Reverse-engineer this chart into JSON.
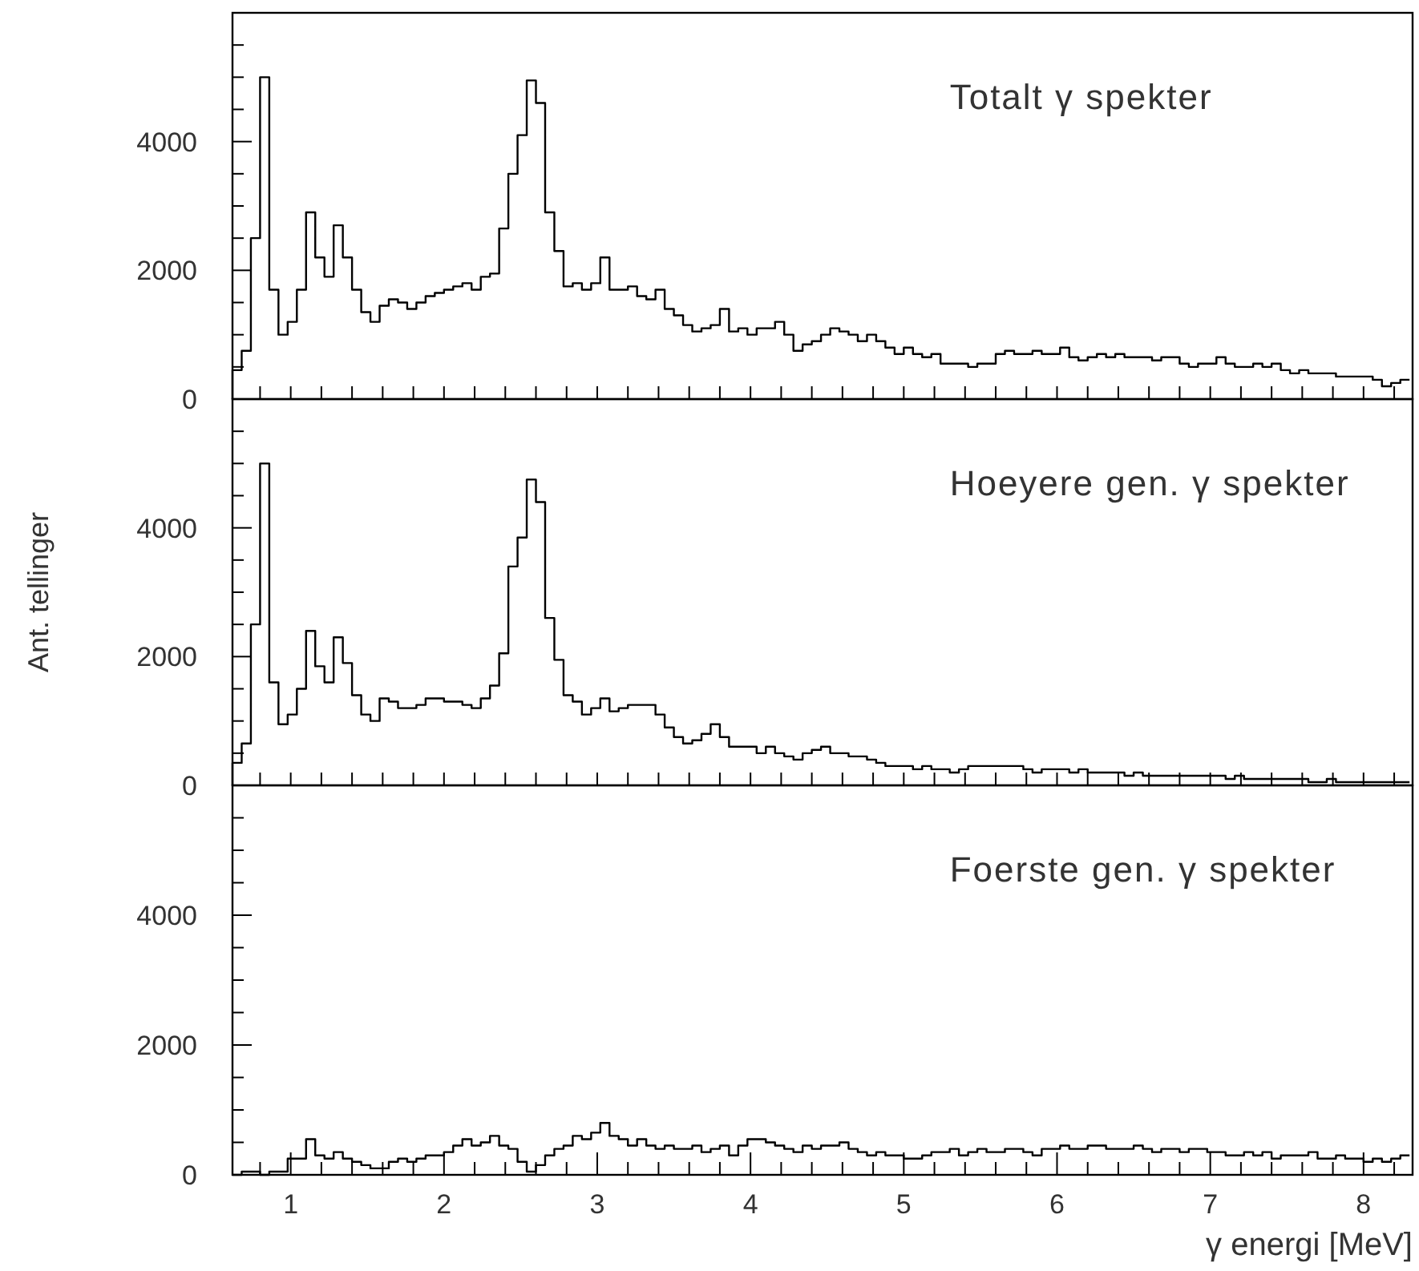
{
  "chart_data": [
    {
      "type": "histogram",
      "title": "Totalt γ spekter",
      "color": "#000000",
      "tick_labels": "y",
      "xlim": [
        0.62,
        8.32
      ],
      "ylim": [
        0,
        6000
      ],
      "xticks": [
        {
          "value": 0.8,
          "label": null
        },
        {
          "value": 1,
          "label": null
        },
        {
          "value": 1.2,
          "label": null
        },
        {
          "value": 1.4,
          "label": null
        },
        {
          "value": 1.6,
          "label": null
        },
        {
          "value": 1.8,
          "label": null
        },
        {
          "value": 2,
          "label": null
        },
        {
          "value": 2.2,
          "label": null
        },
        {
          "value": 2.4,
          "label": null
        },
        {
          "value": 2.6,
          "label": null
        },
        {
          "value": 2.8,
          "label": null
        },
        {
          "value": 3,
          "label": null
        },
        {
          "value": 3.2,
          "label": null
        },
        {
          "value": 3.4,
          "label": null
        },
        {
          "value": 3.6,
          "label": null
        },
        {
          "value": 3.8,
          "label": null
        },
        {
          "value": 4,
          "label": null
        },
        {
          "value": 4.2,
          "label": null
        },
        {
          "value": 4.4,
          "label": null
        },
        {
          "value": 4.6,
          "label": null
        },
        {
          "value": 4.8,
          "label": null
        },
        {
          "value": 5,
          "label": null
        },
        {
          "value": 5.2,
          "label": null
        },
        {
          "value": 5.4,
          "label": null
        },
        {
          "value": 5.6,
          "label": null
        },
        {
          "value": 5.8,
          "label": null
        },
        {
          "value": 6,
          "label": null
        },
        {
          "value": 6.2,
          "label": null
        },
        {
          "value": 6.4,
          "label": null
        },
        {
          "value": 6.6,
          "label": null
        },
        {
          "value": 6.8,
          "label": null
        },
        {
          "value": 7,
          "label": null
        },
        {
          "value": 7.2,
          "label": null
        },
        {
          "value": 7.4,
          "label": null
        },
        {
          "value": 7.6,
          "label": null
        },
        {
          "value": 7.8,
          "label": null
        },
        {
          "value": 8,
          "label": null
        },
        {
          "value": 8.2,
          "label": null
        }
      ],
      "yticks": [
        0,
        {
          "value": 500,
          "label": null
        },
        {
          "value": 1000,
          "label": null
        },
        {
          "value": 1500,
          "label": null
        },
        2000,
        {
          "value": 2500,
          "label": null
        },
        {
          "value": 3000,
          "label": null
        },
        {
          "value": 3500,
          "label": null
        },
        4000,
        {
          "value": 4500,
          "label": null
        },
        {
          "value": 5000,
          "label": null
        },
        {
          "value": 5500,
          "label": null
        }
      ],
      "bins": [
        0.62,
        0.68,
        0.74,
        0.8,
        0.86,
        0.92,
        0.98,
        1.04,
        1.1,
        1.16,
        1.22,
        1.28,
        1.34,
        1.4,
        1.46,
        1.52,
        1.58,
        1.64,
        1.7,
        1.76,
        1.82,
        1.88,
        1.94,
        2,
        2.06,
        2.12,
        2.18,
        2.24,
        2.3,
        2.36,
        2.42,
        2.48,
        2.54,
        2.6,
        2.66,
        2.72,
        2.78,
        2.84,
        2.9,
        2.96,
        3.02,
        3.08,
        3.14,
        3.2,
        3.26,
        3.32,
        3.38,
        3.44,
        3.5,
        3.56,
        3.62,
        3.68,
        3.74,
        3.8,
        3.86,
        3.92,
        3.98,
        4.04,
        4.1,
        4.16,
        4.22,
        4.28,
        4.34,
        4.4,
        4.46,
        4.52,
        4.58,
        4.64,
        4.7,
        4.76,
        4.82,
        4.88,
        4.94,
        5,
        5.06,
        5.12,
        5.18,
        5.24,
        5.3,
        5.36,
        5.42,
        5.48,
        5.54,
        5.6,
        5.66,
        5.72,
        5.78,
        5.84,
        5.9,
        5.96,
        6.02,
        6.08,
        6.14,
        6.2,
        6.26,
        6.32,
        6.38,
        6.44,
        6.5,
        6.56,
        6.62,
        6.68,
        6.74,
        6.8,
        6.86,
        6.92,
        6.98,
        7.04,
        7.1,
        7.16,
        7.22,
        7.28,
        7.34,
        7.4,
        7.46,
        7.52,
        7.58,
        7.64,
        7.7,
        7.76,
        7.82,
        7.88,
        7.94,
        8,
        8.06,
        8.12,
        8.18,
        8.24,
        8.3
      ],
      "values": [
        450,
        750,
        2500,
        5000,
        1700,
        1000,
        1200,
        1700,
        2900,
        2200,
        1900,
        2700,
        2200,
        1700,
        1350,
        1200,
        1450,
        1550,
        1500,
        1400,
        1500,
        1600,
        1650,
        1700,
        1750,
        1800,
        1700,
        1900,
        1950,
        2650,
        3500,
        4100,
        4950,
        4600,
        2900,
        2300,
        1750,
        1800,
        1700,
        1800,
        2200,
        1700,
        1700,
        1750,
        1600,
        1550,
        1700,
        1400,
        1300,
        1150,
        1050,
        1100,
        1150,
        1400,
        1050,
        1100,
        1000,
        1100,
        1100,
        1200,
        1000,
        750,
        850,
        900,
        1000,
        1100,
        1050,
        1000,
        900,
        1000,
        900,
        800,
        700,
        800,
        700,
        650,
        700,
        550,
        550,
        550,
        500,
        550,
        550,
        700,
        750,
        700,
        700,
        750,
        700,
        700,
        800,
        650,
        600,
        650,
        700,
        650,
        700,
        650,
        650,
        650,
        600,
        650,
        650,
        550,
        500,
        550,
        550,
        650,
        550,
        500,
        500,
        550,
        500,
        550,
        450,
        400,
        450,
        400,
        400,
        400,
        350,
        350,
        350,
        350,
        300,
        200,
        250,
        300
      ]
    },
    {
      "type": "histogram",
      "title": "Hoeyere gen. γ spekter",
      "ylabel": "Ant. tellinger",
      "color": "#000000",
      "tick_labels": "y",
      "xlim": [
        0.62,
        8.32
      ],
      "ylim": [
        0,
        6000
      ],
      "xticks": [
        {
          "value": 0.8,
          "label": null
        },
        {
          "value": 1,
          "label": null
        },
        {
          "value": 1.2,
          "label": null
        },
        {
          "value": 1.4,
          "label": null
        },
        {
          "value": 1.6,
          "label": null
        },
        {
          "value": 1.8,
          "label": null
        },
        {
          "value": 2,
          "label": null
        },
        {
          "value": 2.2,
          "label": null
        },
        {
          "value": 2.4,
          "label": null
        },
        {
          "value": 2.6,
          "label": null
        },
        {
          "value": 2.8,
          "label": null
        },
        {
          "value": 3,
          "label": null
        },
        {
          "value": 3.2,
          "label": null
        },
        {
          "value": 3.4,
          "label": null
        },
        {
          "value": 3.6,
          "label": null
        },
        {
          "value": 3.8,
          "label": null
        },
        {
          "value": 4,
          "label": null
        },
        {
          "value": 4.2,
          "label": null
        },
        {
          "value": 4.4,
          "label": null
        },
        {
          "value": 4.6,
          "label": null
        },
        {
          "value": 4.8,
          "label": null
        },
        {
          "value": 5,
          "label": null
        },
        {
          "value": 5.2,
          "label": null
        },
        {
          "value": 5.4,
          "label": null
        },
        {
          "value": 5.6,
          "label": null
        },
        {
          "value": 5.8,
          "label": null
        },
        {
          "value": 6,
          "label": null
        },
        {
          "value": 6.2,
          "label": null
        },
        {
          "value": 6.4,
          "label": null
        },
        {
          "value": 6.6,
          "label": null
        },
        {
          "value": 6.8,
          "label": null
        },
        {
          "value": 7,
          "label": null
        },
        {
          "value": 7.2,
          "label": null
        },
        {
          "value": 7.4,
          "label": null
        },
        {
          "value": 7.6,
          "label": null
        },
        {
          "value": 7.8,
          "label": null
        },
        {
          "value": 8,
          "label": null
        },
        {
          "value": 8.2,
          "label": null
        }
      ],
      "yticks": [
        0,
        {
          "value": 500,
          "label": null
        },
        {
          "value": 1000,
          "label": null
        },
        {
          "value": 1500,
          "label": null
        },
        2000,
        {
          "value": 2500,
          "label": null
        },
        {
          "value": 3000,
          "label": null
        },
        {
          "value": 3500,
          "label": null
        },
        4000,
        {
          "value": 4500,
          "label": null
        },
        {
          "value": 5000,
          "label": null
        },
        {
          "value": 5500,
          "label": null
        }
      ],
      "bins": [
        0.62,
        0.68,
        0.74,
        0.8,
        0.86,
        0.92,
        0.98,
        1.04,
        1.1,
        1.16,
        1.22,
        1.28,
        1.34,
        1.4,
        1.46,
        1.52,
        1.58,
        1.64,
        1.7,
        1.76,
        1.82,
        1.88,
        1.94,
        2,
        2.06,
        2.12,
        2.18,
        2.24,
        2.3,
        2.36,
        2.42,
        2.48,
        2.54,
        2.6,
        2.66,
        2.72,
        2.78,
        2.84,
        2.9,
        2.96,
        3.02,
        3.08,
        3.14,
        3.2,
        3.26,
        3.32,
        3.38,
        3.44,
        3.5,
        3.56,
        3.62,
        3.68,
        3.74,
        3.8,
        3.86,
        3.92,
        3.98,
        4.04,
        4.1,
        4.16,
        4.22,
        4.28,
        4.34,
        4.4,
        4.46,
        4.52,
        4.58,
        4.64,
        4.7,
        4.76,
        4.82,
        4.88,
        4.94,
        5,
        5.06,
        5.12,
        5.18,
        5.24,
        5.3,
        5.36,
        5.42,
        5.48,
        5.54,
        5.6,
        5.66,
        5.72,
        5.78,
        5.84,
        5.9,
        5.96,
        6.02,
        6.08,
        6.14,
        6.2,
        6.26,
        6.32,
        6.38,
        6.44,
        6.5,
        6.56,
        6.62,
        6.68,
        6.74,
        6.8,
        6.86,
        6.92,
        6.98,
        7.04,
        7.1,
        7.16,
        7.22,
        7.28,
        7.34,
        7.4,
        7.46,
        7.52,
        7.58,
        7.64,
        7.7,
        7.76,
        7.82,
        7.88,
        7.94,
        8,
        8.06,
        8.12,
        8.18,
        8.24,
        8.3
      ],
      "values": [
        350,
        650,
        2500,
        5000,
        1600,
        950,
        1100,
        1500,
        2400,
        1850,
        1600,
        2300,
        1900,
        1400,
        1100,
        1000,
        1350,
        1300,
        1200,
        1200,
        1250,
        1350,
        1350,
        1300,
        1300,
        1250,
        1200,
        1350,
        1550,
        2050,
        3400,
        3850,
        4750,
        4400,
        2600,
        1950,
        1400,
        1300,
        1100,
        1200,
        1350,
        1150,
        1200,
        1250,
        1250,
        1250,
        1100,
        900,
        750,
        650,
        700,
        800,
        950,
        750,
        600,
        600,
        600,
        500,
        600,
        500,
        450,
        400,
        500,
        550,
        600,
        500,
        500,
        450,
        450,
        400,
        350,
        300,
        300,
        300,
        250,
        300,
        250,
        250,
        200,
        250,
        300,
        300,
        300,
        300,
        300,
        300,
        250,
        200,
        250,
        250,
        250,
        200,
        250,
        200,
        200,
        200,
        200,
        150,
        200,
        150,
        150,
        150,
        150,
        150,
        150,
        150,
        150,
        150,
        100,
        150,
        100,
        100,
        100,
        100,
        100,
        100,
        100,
        50,
        50,
        100,
        50,
        50,
        50,
        50,
        50,
        50,
        50,
        50
      ]
    },
    {
      "type": "histogram",
      "title": "Foerste gen. γ spekter",
      "xlabel": "γ energi [MeV]",
      "color": "#000000",
      "xlim": [
        0.62,
        8.32
      ],
      "ylim": [
        0,
        6000
      ],
      "xticks": [
        {
          "value": 0.8,
          "label": null
        },
        1,
        {
          "value": 1.2,
          "label": null
        },
        {
          "value": 1.4,
          "label": null
        },
        {
          "value": 1.6,
          "label": null
        },
        {
          "value": 1.8,
          "label": null
        },
        2,
        {
          "value": 2.2,
          "label": null
        },
        {
          "value": 2.4,
          "label": null
        },
        {
          "value": 2.6,
          "label": null
        },
        {
          "value": 2.8,
          "label": null
        },
        3,
        {
          "value": 3.2,
          "label": null
        },
        {
          "value": 3.4,
          "label": null
        },
        {
          "value": 3.6,
          "label": null
        },
        {
          "value": 3.8,
          "label": null
        },
        4,
        {
          "value": 4.2,
          "label": null
        },
        {
          "value": 4.4,
          "label": null
        },
        {
          "value": 4.6,
          "label": null
        },
        {
          "value": 4.8,
          "label": null
        },
        5,
        {
          "value": 5.2,
          "label": null
        },
        {
          "value": 5.4,
          "label": null
        },
        {
          "value": 5.6,
          "label": null
        },
        {
          "value": 5.8,
          "label": null
        },
        6,
        {
          "value": 6.2,
          "label": null
        },
        {
          "value": 6.4,
          "label": null
        },
        {
          "value": 6.6,
          "label": null
        },
        {
          "value": 6.8,
          "label": null
        },
        7,
        {
          "value": 7.2,
          "label": null
        },
        {
          "value": 7.4,
          "label": null
        },
        {
          "value": 7.6,
          "label": null
        },
        {
          "value": 7.8,
          "label": null
        },
        8,
        {
          "value": 8.2,
          "label": null
        }
      ],
      "yticks": [
        0,
        {
          "value": 500,
          "label": null
        },
        {
          "value": 1000,
          "label": null
        },
        {
          "value": 1500,
          "label": null
        },
        2000,
        {
          "value": 2500,
          "label": null
        },
        {
          "value": 3000,
          "label": null
        },
        {
          "value": 3500,
          "label": null
        },
        4000,
        {
          "value": 4500,
          "label": null
        },
        {
          "value": 5000,
          "label": null
        },
        {
          "value": 5500,
          "label": null
        }
      ],
      "bins": [
        0.62,
        0.68,
        0.74,
        0.8,
        0.86,
        0.92,
        0.98,
        1.04,
        1.1,
        1.16,
        1.22,
        1.28,
        1.34,
        1.4,
        1.46,
        1.52,
        1.58,
        1.64,
        1.7,
        1.76,
        1.82,
        1.88,
        1.94,
        2,
        2.06,
        2.12,
        2.18,
        2.24,
        2.3,
        2.36,
        2.42,
        2.48,
        2.54,
        2.6,
        2.66,
        2.72,
        2.78,
        2.84,
        2.9,
        2.96,
        3.02,
        3.08,
        3.14,
        3.2,
        3.26,
        3.32,
        3.38,
        3.44,
        3.5,
        3.56,
        3.62,
        3.68,
        3.74,
        3.8,
        3.86,
        3.92,
        3.98,
        4.04,
        4.1,
        4.16,
        4.22,
        4.28,
        4.34,
        4.4,
        4.46,
        4.52,
        4.58,
        4.64,
        4.7,
        4.76,
        4.82,
        4.88,
        4.94,
        5,
        5.06,
        5.12,
        5.18,
        5.24,
        5.3,
        5.36,
        5.42,
        5.48,
        5.54,
        5.6,
        5.66,
        5.72,
        5.78,
        5.84,
        5.9,
        5.96,
        6.02,
        6.08,
        6.14,
        6.2,
        6.26,
        6.32,
        6.38,
        6.44,
        6.5,
        6.56,
        6.62,
        6.68,
        6.74,
        6.8,
        6.86,
        6.92,
        6.98,
        7.04,
        7.1,
        7.16,
        7.22,
        7.28,
        7.34,
        7.4,
        7.46,
        7.52,
        7.58,
        7.64,
        7.7,
        7.76,
        7.82,
        7.88,
        7.94,
        8,
        8.06,
        8.12,
        8.18,
        8.24,
        8.3
      ],
      "values": [
        0,
        50,
        50,
        0,
        50,
        50,
        250,
        250,
        550,
        300,
        250,
        350,
        250,
        200,
        150,
        100,
        100,
        200,
        250,
        200,
        250,
        300,
        300,
        350,
        450,
        550,
        450,
        500,
        600,
        450,
        400,
        200,
        50,
        150,
        300,
        400,
        450,
        600,
        550,
        650,
        800,
        600,
        550,
        450,
        550,
        450,
        400,
        450,
        400,
        400,
        450,
        350,
        400,
        450,
        300,
        450,
        550,
        550,
        500,
        450,
        400,
        350,
        450,
        400,
        450,
        450,
        500,
        400,
        350,
        300,
        350,
        300,
        300,
        250,
        250,
        300,
        350,
        350,
        400,
        300,
        350,
        400,
        350,
        350,
        400,
        400,
        350,
        300,
        400,
        400,
        450,
        400,
        400,
        450,
        450,
        400,
        400,
        400,
        450,
        400,
        350,
        400,
        400,
        350,
        400,
        400,
        350,
        350,
        300,
        300,
        350,
        300,
        350,
        250,
        300,
        300,
        300,
        350,
        250,
        250,
        300,
        250,
        250,
        200,
        250,
        200,
        250,
        300
      ]
    }
  ]
}
